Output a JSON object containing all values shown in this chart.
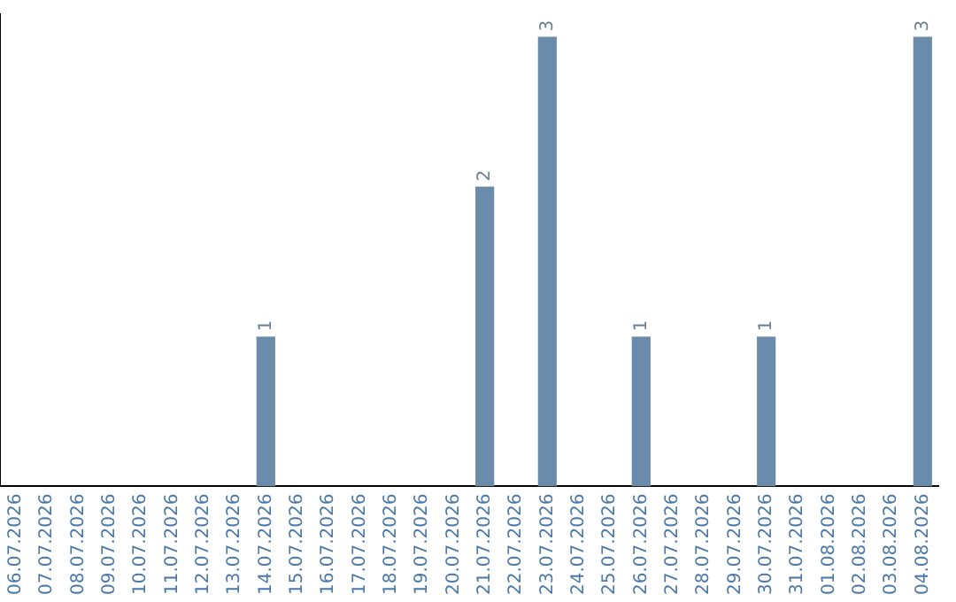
{
  "chart_data": {
    "type": "bar",
    "categories": [
      "06.07.2026",
      "07.07.2026",
      "08.07.2026",
      "09.07.2026",
      "10.07.2026",
      "11.07.2026",
      "12.07.2026",
      "13.07.2026",
      "14.07.2026",
      "15.07.2026",
      "16.07.2026",
      "17.07.2026",
      "18.07.2026",
      "19.07.2026",
      "20.07.2026",
      "21.07.2026",
      "22.07.2026",
      "23.07.2026",
      "24.07.2026",
      "25.07.2026",
      "26.07.2026",
      "27.07.2026",
      "28.07.2026",
      "29.07.2026",
      "30.07.2026",
      "31.07.2026",
      "01.08.2026",
      "02.08.2026",
      "03.08.2026",
      "04.08.2026"
    ],
    "values": [
      0,
      0,
      0,
      0,
      0,
      0,
      0,
      0,
      1,
      0,
      0,
      0,
      0,
      0,
      0,
      2,
      0,
      3,
      0,
      0,
      1,
      0,
      0,
      0,
      1,
      0,
      0,
      0,
      0,
      3
    ],
    "value_labels": [
      null,
      null,
      null,
      null,
      null,
      null,
      null,
      null,
      "1",
      null,
      null,
      null,
      null,
      null,
      null,
      "2",
      null,
      "3",
      null,
      null,
      "1",
      null,
      null,
      null,
      "1",
      null,
      null,
      null,
      null,
      "3"
    ],
    "color": "#6a8caa",
    "ylim": [
      0,
      3.15
    ],
    "tick_labels": "x",
    "grid": false,
    "legend": false
  }
}
